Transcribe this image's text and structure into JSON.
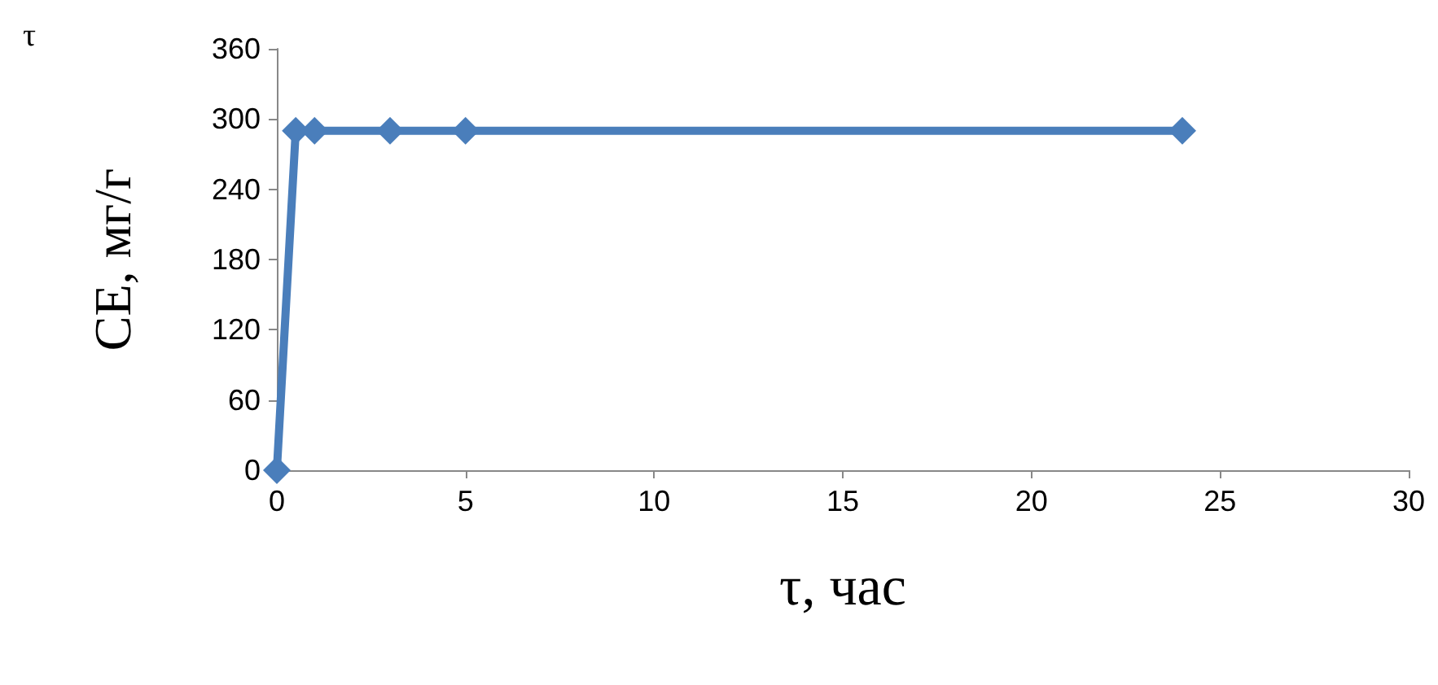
{
  "chart_data": {
    "type": "line",
    "xlabel": "τ, час",
    "ylabel": "CE, мг/г",
    "annotations": [
      "τ"
    ],
    "x": [
      0,
      0.5,
      1,
      3,
      5,
      24
    ],
    "series": [
      {
        "color": "#4a7ebb",
        "values": [
          0,
          290,
          290,
          290,
          290,
          290
        ]
      }
    ],
    "xlim": [
      0,
      30
    ],
    "xticks": [
      0,
      5,
      10,
      15,
      20,
      25,
      30
    ],
    "ylim": [
      0,
      360
    ],
    "yticks": [
      0,
      60,
      120,
      180,
      240,
      300,
      360
    ],
    "marker": "diamond",
    "line_style": "solid"
  }
}
